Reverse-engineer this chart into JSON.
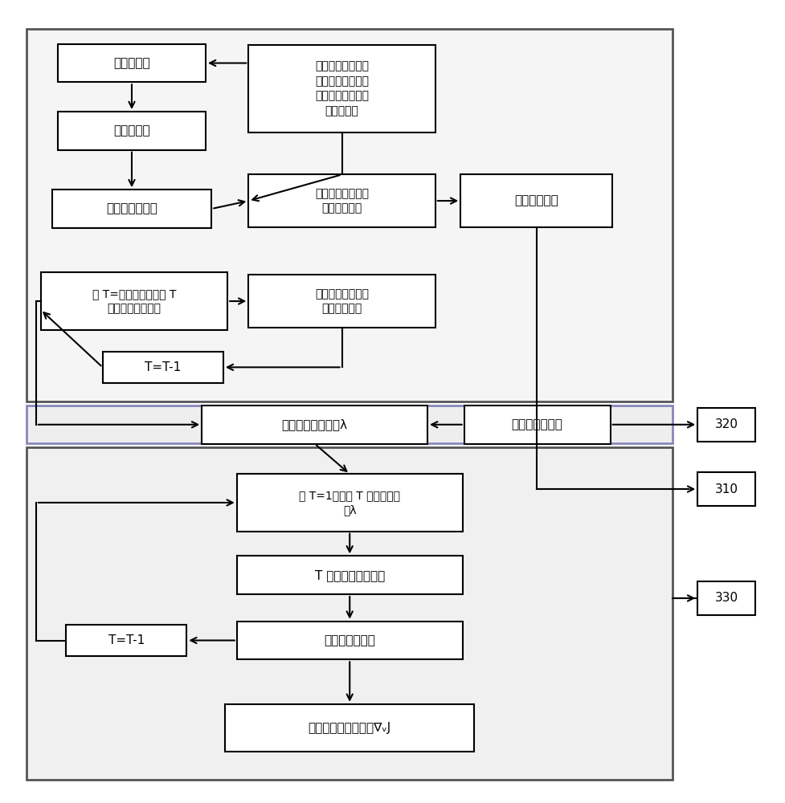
{
  "bg": "#ffffff",
  "sec1_ec": "#555555",
  "sec1_fc": "#f5f5f5",
  "sec2_ec": "#8888bb",
  "sec2_fc": "#eeeeee",
  "sec3_ec": "#555555",
  "sec3_fc": "#f0f0f0",
  "box_ec": "#000000",
  "box_fc": "#ffffff",
  "arr_c": "#000000",
  "sec1": [
    0.03,
    0.5,
    0.83,
    0.468
  ],
  "sec2": [
    0.03,
    0.448,
    0.83,
    0.047
  ],
  "sec3": [
    0.03,
    0.025,
    0.83,
    0.418
  ],
  "boxes": {
    "moni": [
      0.165,
      0.925,
      0.19,
      0.048,
      "模拟器计算"
    ],
    "yake": [
      0.165,
      0.84,
      0.19,
      0.048,
      "雅可比矩阵"
    ],
    "zhuan": [
      0.165,
      0.742,
      0.205,
      0.048,
      "转置雅可比矩阵"
    ],
    "qiubu": [
      0.435,
      0.893,
      0.24,
      0.11,
      "求不同时间步下的\n状态方程矩阵及控\n制变量对目标函数\n的梯度矩阵"
    ],
    "anzh": [
      0.435,
      0.752,
      0.24,
      0.066,
      "按照解法器格式整\n理雅可比矩阵"
    ],
    "shuchu1": [
      0.685,
      0.752,
      0.195,
      0.066,
      "输出伴随矩阵"
    ],
    "zhit1": [
      0.168,
      0.626,
      0.24,
      0.072,
      "置 T=最后时刻，读取 T\n时刻的雅可比矩阵"
    ],
    "dedao": [
      0.435,
      0.626,
      0.24,
      0.066,
      "得到与状态方程累\n积项相关矩阵"
    ],
    "ttt1": [
      0.205,
      0.543,
      0.155,
      0.04,
      "T=T-1"
    ],
    "meiyi": [
      0.4,
      0.471,
      0.29,
      0.048,
      "每一时刻伴随变量λ"
    ],
    "tiaoy": [
      0.686,
      0.471,
      0.188,
      0.048,
      "调用解法器求解"
    ],
    "zhit2": [
      0.445,
      0.373,
      0.29,
      0.072,
      "置 T=1，读取 T 时刻伴随变\n量λ"
    ],
    "tshike": [
      0.445,
      0.282,
      0.29,
      0.048,
      "T 时刻的敏感性方程"
    ],
    "qiude": [
      0.445,
      0.2,
      0.29,
      0.048,
      "求得敏感性系数"
    ],
    "ttt2": [
      0.158,
      0.2,
      0.155,
      0.04,
      "T=T-1"
    ],
    "shuchu2": [
      0.445,
      0.09,
      0.32,
      0.06,
      "输出敏感性系数矩阵∇ᵥJ"
    ],
    "n310": [
      0.929,
      0.39,
      0.074,
      0.042,
      "310"
    ],
    "n320": [
      0.929,
      0.471,
      0.074,
      0.042,
      "320"
    ],
    "n330": [
      0.929,
      0.253,
      0.074,
      0.042,
      "330"
    ]
  }
}
